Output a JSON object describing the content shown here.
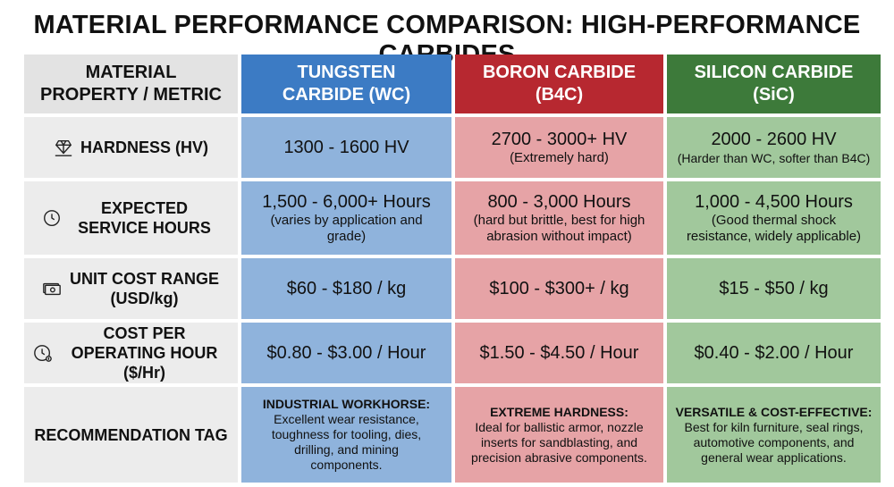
{
  "title": "MATERIAL PERFORMANCE COMPARISON: HIGH-PERFORMANCE CARBIDES",
  "headers": {
    "property": "MATERIAL PROPERTY / METRIC",
    "wc": "TUNGSTEN CARBIDE (WC)",
    "bc": "BORON CARBIDE (B4C)",
    "sc": "SILICON CARBIDE (SiC)"
  },
  "header_colors": {
    "wc": "#3c7bc4",
    "bc": "#b72830",
    "sc": "#3d7a3a"
  },
  "rows": [
    {
      "icon": "diamond-icon",
      "label": "HARDNESS (HV)",
      "wc": {
        "main": "1300 - 1600 HV",
        "sub": ""
      },
      "bc": {
        "main": "2700 - 3000+ HV",
        "sub": "(Extremely hard)"
      },
      "sc": {
        "main": "2000 - 2600 HV",
        "sub": "(Harder than WC, softer than B4C)"
      }
    },
    {
      "icon": "clock-icon",
      "label": "EXPECTED SERVICE HOURS",
      "wc": {
        "main": "1,500 - 6,000+ Hours",
        "sub": "(varies by application and grade)"
      },
      "bc": {
        "main": "800 - 3,000 Hours",
        "sub": "(hard but brittle, best for high abrasion without impact)"
      },
      "sc": {
        "main": "1,000 - 4,500 Hours",
        "sub": "(Good thermal shock resistance, widely applicable)"
      }
    },
    {
      "icon": "cash-icon",
      "label": "UNIT COST RANGE (USD/kg)",
      "wc": {
        "main": "$60 - $180 / kg",
        "sub": ""
      },
      "bc": {
        "main": "$100 - $300+ / kg",
        "sub": ""
      },
      "sc": {
        "main": "$15 - $50 / kg",
        "sub": ""
      }
    },
    {
      "icon": "cost-clock-icon",
      "label": "COST PER OPERATING HOUR ($/Hr)",
      "wc": {
        "main": "$0.80 - $3.00 / Hour",
        "sub": ""
      },
      "bc": {
        "main": "$1.50 - $4.50 / Hour",
        "sub": ""
      },
      "sc": {
        "main": "$0.40 - $2.00 / Hour",
        "sub": ""
      }
    }
  ],
  "recommendation": {
    "label": "RECOMMENDATION TAG",
    "wc": {
      "head": "INDUSTRIAL WORKHORSE:",
      "body": "Excellent wear resistance, toughness for tooling, dies, drilling, and mining components."
    },
    "bc": {
      "head": "EXTREME HARDNESS:",
      "body": "Ideal for ballistic armor, nozzle inserts for sandblasting, and precision abrasive components."
    },
    "sc": {
      "head": "VERSATILE & COST-EFFECTIVE:",
      "body": "Best for kiln furniture, seal rings, automotive components, and general wear applications."
    }
  }
}
